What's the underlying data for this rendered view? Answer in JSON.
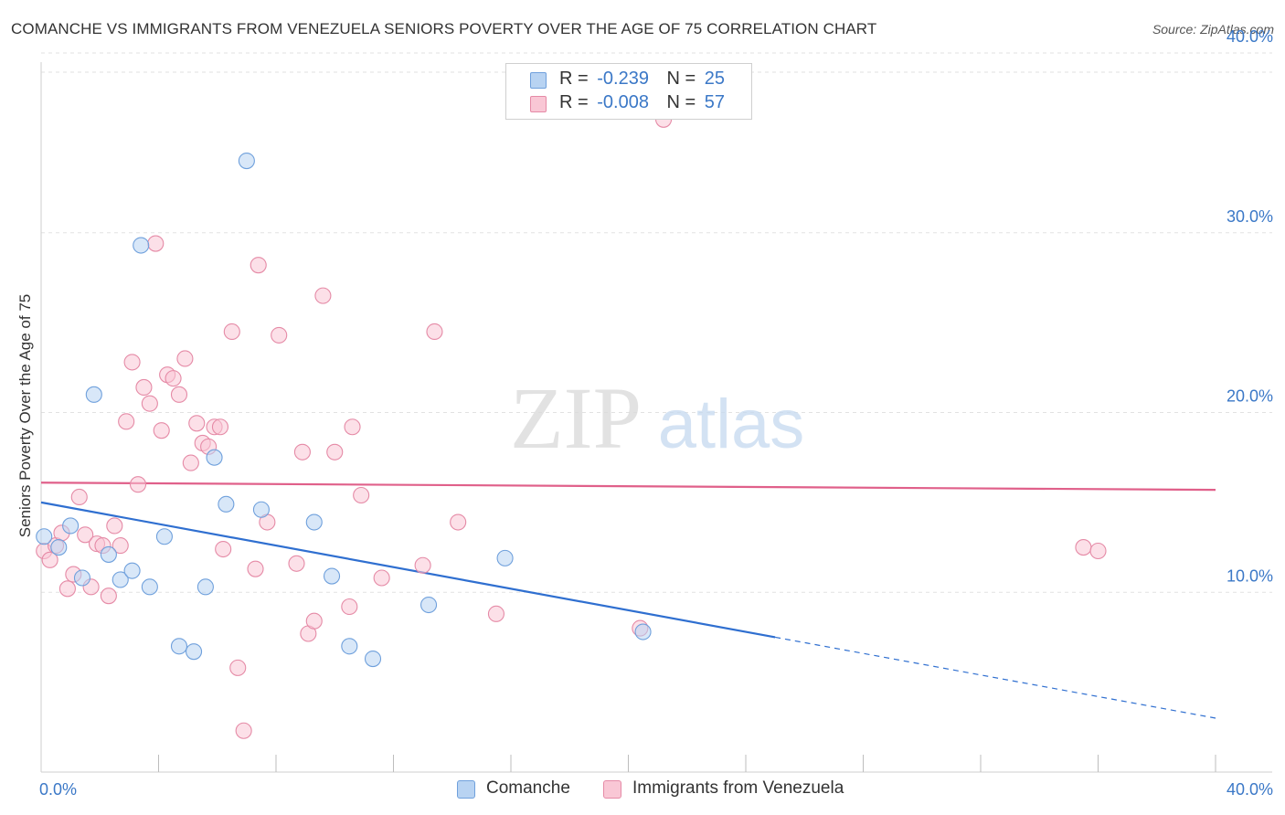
{
  "title": "COMANCHE VS IMMIGRANTS FROM VENEZUELA SENIORS POVERTY OVER THE AGE OF 75 CORRELATION CHART",
  "source": "Source: ZipAtlas.com",
  "watermark": {
    "zip": "ZIP",
    "atlas": "atlas"
  },
  "legend": {
    "r_label": "R =",
    "n_label": "N =",
    "items": [
      {
        "name": "Comanche",
        "r": "-0.239",
        "n": "25",
        "fill": "#b8d3f2",
        "stroke": "#6fa0dc"
      },
      {
        "name": "Immigrants from Venezuela",
        "r": "-0.008",
        "n": "57",
        "fill": "#f9c7d5",
        "stroke": "#e58aa6"
      }
    ]
  },
  "chart_data": {
    "type": "scatter",
    "title": "COMANCHE VS IMMIGRANTS FROM VENEZUELA SENIORS POVERTY OVER THE AGE OF 75 CORRELATION CHART",
    "xlabel": "",
    "ylabel": "Seniors Poverty Over the Age of 75",
    "xlim": [
      0,
      40
    ],
    "ylim": [
      0,
      40
    ],
    "x_tick_labels": [
      "0.0%",
      "40.0%"
    ],
    "y_ticks": [
      10,
      20,
      30,
      40
    ],
    "y_tick_labels": [
      "10.0%",
      "20.0%",
      "30.0%",
      "40.0%"
    ],
    "grid": true,
    "series": [
      {
        "name": "Comanche",
        "color": "#6fa0dc",
        "fill": "#b8d3f2",
        "line_color": "#2f6fd0",
        "trend": {
          "x0": 0,
          "y0": 15.0,
          "x1": 40,
          "y1": 3.0,
          "solid_until": 25
        },
        "points": [
          [
            0.1,
            13.1
          ],
          [
            0.6,
            12.5
          ],
          [
            1.0,
            13.7
          ],
          [
            1.4,
            10.8
          ],
          [
            1.8,
            21.0
          ],
          [
            2.3,
            12.1
          ],
          [
            2.7,
            10.7
          ],
          [
            3.1,
            11.2
          ],
          [
            3.4,
            29.3
          ],
          [
            3.7,
            10.3
          ],
          [
            4.2,
            13.1
          ],
          [
            4.7,
            7.0
          ],
          [
            5.2,
            6.7
          ],
          [
            5.6,
            10.3
          ],
          [
            5.9,
            17.5
          ],
          [
            6.3,
            14.9
          ],
          [
            7.0,
            34.0
          ],
          [
            7.5,
            14.6
          ],
          [
            9.3,
            13.9
          ],
          [
            9.9,
            10.9
          ],
          [
            10.5,
            7.0
          ],
          [
            11.3,
            6.3
          ],
          [
            13.2,
            9.3
          ],
          [
            15.8,
            11.9
          ],
          [
            20.5,
            7.8
          ]
        ]
      },
      {
        "name": "Immigrants from Venezuela",
        "color": "#e58aa6",
        "fill": "#f9c7d5",
        "line_color": "#e0608a",
        "trend": {
          "x0": 0,
          "y0": 16.1,
          "x1": 40,
          "y1": 15.7,
          "solid_until": 40
        },
        "points": [
          [
            0.1,
            12.3
          ],
          [
            0.3,
            11.8
          ],
          [
            0.5,
            12.6
          ],
          [
            0.7,
            13.3
          ],
          [
            0.9,
            10.2
          ],
          [
            1.1,
            11.0
          ],
          [
            1.3,
            15.3
          ],
          [
            1.5,
            13.2
          ],
          [
            1.7,
            10.3
          ],
          [
            1.9,
            12.7
          ],
          [
            2.1,
            12.6
          ],
          [
            2.3,
            9.8
          ],
          [
            2.5,
            13.7
          ],
          [
            2.7,
            12.6
          ],
          [
            2.9,
            19.5
          ],
          [
            3.1,
            22.8
          ],
          [
            3.3,
            16.0
          ],
          [
            3.5,
            21.4
          ],
          [
            3.7,
            20.5
          ],
          [
            3.9,
            29.4
          ],
          [
            4.1,
            19.0
          ],
          [
            4.3,
            22.1
          ],
          [
            4.5,
            21.9
          ],
          [
            4.7,
            21.0
          ],
          [
            4.9,
            23.0
          ],
          [
            5.1,
            17.2
          ],
          [
            5.3,
            19.4
          ],
          [
            5.5,
            18.3
          ],
          [
            5.7,
            18.1
          ],
          [
            5.9,
            19.2
          ],
          [
            6.1,
            19.2
          ],
          [
            6.2,
            12.4
          ],
          [
            6.5,
            24.5
          ],
          [
            6.7,
            5.8
          ],
          [
            6.9,
            2.3
          ],
          [
            7.3,
            11.3
          ],
          [
            7.4,
            28.2
          ],
          [
            7.7,
            13.9
          ],
          [
            8.1,
            24.3
          ],
          [
            8.7,
            11.6
          ],
          [
            8.9,
            17.8
          ],
          [
            9.1,
            7.7
          ],
          [
            9.3,
            8.4
          ],
          [
            9.6,
            26.5
          ],
          [
            10.0,
            17.8
          ],
          [
            10.5,
            9.2
          ],
          [
            10.6,
            19.2
          ],
          [
            10.9,
            15.4
          ],
          [
            11.6,
            10.8
          ],
          [
            13.0,
            11.5
          ],
          [
            13.4,
            24.5
          ],
          [
            14.2,
            13.9
          ],
          [
            15.5,
            8.8
          ],
          [
            20.4,
            8.0
          ],
          [
            21.2,
            36.3
          ],
          [
            35.5,
            12.5
          ],
          [
            36.0,
            12.3
          ]
        ]
      }
    ]
  }
}
